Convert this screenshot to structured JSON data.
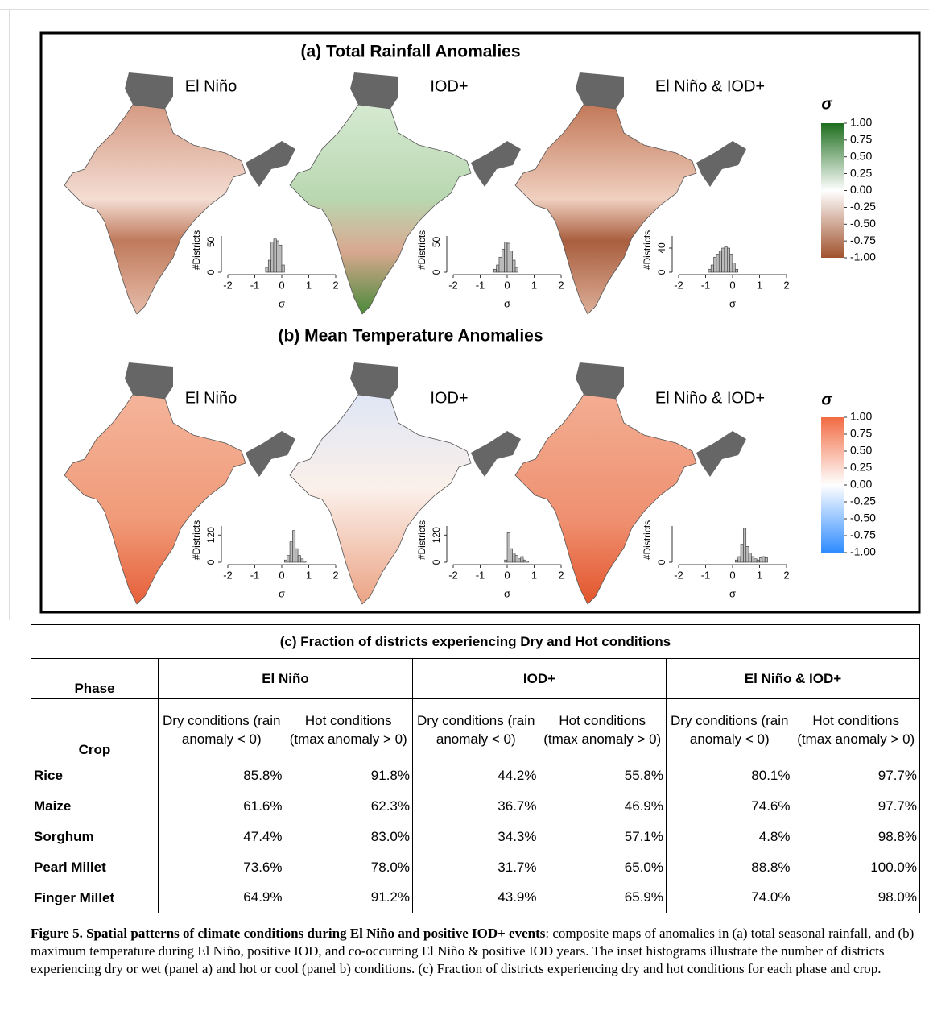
{
  "figure": {
    "panels": [
      {
        "title": "(a) Total Rainfall Anomalies",
        "colorbar": {
          "title": "σ",
          "lim": [
            -1,
            1
          ],
          "colors": [
            "#a0522d",
            "#ffffff",
            "#1e6e1e"
          ],
          "ticks": [
            {
              "value": 1,
              "label": "1.00"
            },
            {
              "value": 0.75,
              "label": "0.75"
            },
            {
              "value": 0.5,
              "label": "0.50"
            },
            {
              "value": 0.25,
              "label": "0.25"
            },
            {
              "value": 0,
              "label": "0.00"
            },
            {
              "value": -0.25,
              "label": "-0.25"
            },
            {
              "value": -0.5,
              "label": "-0.50"
            },
            {
              "value": -0.75,
              "label": "-0.75"
            },
            {
              "value": -1,
              "label": "-1.00"
            }
          ]
        },
        "hist_axis": {
          "ylabel": "#Districts",
          "xlabel": "σ",
          "xlim": [
            -2,
            2
          ],
          "xticks": [
            -2,
            -1,
            0,
            1,
            2
          ],
          "ylim": [
            0,
            60
          ]
        },
        "maps": [
          {
            "label": "El Niño",
            "hist": {
              "yticks": [
                0,
                50
              ],
              "bins": [
                -0.6,
                -0.5,
                -0.4,
                -0.3,
                -0.2,
                -0.1,
                0,
                0.1
              ],
              "counts": [
                8,
                20,
                50,
                55,
                52,
                45,
                12
              ]
            }
          },
          {
            "label": "IOD+",
            "hist": {
              "yticks": [
                0,
                50
              ],
              "bins": [
                -0.5,
                -0.4,
                -0.3,
                -0.2,
                -0.1,
                0,
                0.1,
                0.2,
                0.3,
                0.4
              ],
              "counts": [
                5,
                12,
                25,
                38,
                50,
                48,
                35,
                20,
                8
              ]
            }
          },
          {
            "label": "El Niño & IOD+",
            "hist": {
              "yticks": [
                0,
                40
              ],
              "bins": [
                -0.9,
                -0.8,
                -0.7,
                -0.6,
                -0.5,
                -0.4,
                -0.3,
                -0.2,
                -0.1,
                0,
                0.1,
                0.2
              ],
              "counts": [
                5,
                12,
                25,
                30,
                35,
                40,
                42,
                40,
                30,
                15,
                5
              ]
            }
          }
        ]
      },
      {
        "title": "(b) Mean Temperature Anomalies",
        "colorbar": {
          "title": "σ",
          "lim": [
            -1,
            1
          ],
          "colors": [
            "#2e8bff",
            "#ffffff",
            "#f26b43"
          ],
          "ticks": [
            {
              "value": 1,
              "label": "1.00"
            },
            {
              "value": 0.75,
              "label": "0.75"
            },
            {
              "value": 0.5,
              "label": "0.50"
            },
            {
              "value": 0.25,
              "label": "0.25"
            },
            {
              "value": 0,
              "label": "0.00"
            },
            {
              "value": -0.25,
              "label": "-0.25"
            },
            {
              "value": -0.5,
              "label": "-0.50"
            },
            {
              "value": -0.75,
              "label": "-0.75"
            },
            {
              "value": -1,
              "label": "-1.00"
            }
          ]
        },
        "hist_axis": {
          "ylabel": "#Districts",
          "xlabel": "σ",
          "xlim": [
            -2,
            2
          ],
          "xticks": [
            -2,
            -1,
            0,
            1,
            2
          ],
          "ylim": [
            0,
            160
          ]
        },
        "maps": [
          {
            "label": "El Niño",
            "hist": {
              "yticks": [
                0,
                120
              ],
              "bins": [
                0.1,
                0.2,
                0.3,
                0.4,
                0.5,
                0.6,
                0.7,
                0.8,
                0.9
              ],
              "counts": [
                10,
                30,
                90,
                140,
                60,
                30,
                15,
                5
              ]
            }
          },
          {
            "label": "IOD+",
            "hist": {
              "yticks": [
                0,
                120
              ],
              "bins": [
                -0.1,
                0,
                0.1,
                0.2,
                0.3,
                0.4,
                0.5,
                0.6,
                0.7,
                0.8
              ],
              "counts": [
                10,
                130,
                60,
                40,
                30,
                15,
                25,
                10,
                5
              ]
            }
          },
          {
            "label": "El Niño & IOD+",
            "hist": {
              "yticks": [
                0
              ],
              "bins": [
                0.1,
                0.2,
                0.3,
                0.4,
                0.5,
                0.6,
                0.7,
                0.8,
                0.9,
                1.0,
                1.1,
                1.2,
                1.3
              ],
              "counts": [
                10,
                25,
                80,
                150,
                70,
                40,
                25,
                15,
                10,
                20,
                25,
                20
              ]
            }
          }
        ]
      }
    ]
  },
  "table": {
    "title": "(c) Fraction of districts experiencing Dry and Hot conditions",
    "corner_top": "Phase",
    "corner_bottom": "Crop",
    "phases": [
      "El Niño",
      "IOD+",
      "El Niño & IOD+"
    ],
    "subheaders": [
      "Dry conditions (rain anomaly < 0)",
      "Hot conditions (tmax anomaly > 0)"
    ],
    "rows": [
      [
        "Rice",
        "85.8%",
        "91.8%",
        "44.2%",
        "55.8%",
        "80.1%",
        "97.7%"
      ],
      [
        "Maize",
        "61.6%",
        "62.3%",
        "36.7%",
        "46.9%",
        "74.6%",
        "97.7%"
      ],
      [
        "Sorghum",
        "47.4%",
        "83.0%",
        "34.3%",
        "57.1%",
        "4.8%",
        "98.8%"
      ],
      [
        "Pearl Millet",
        "73.6%",
        "78.0%",
        "31.7%",
        "65.0%",
        "88.8%",
        "100.0%"
      ],
      [
        "Finger Millet",
        "64.9%",
        "91.2%",
        "43.9%",
        "65.9%",
        "74.0%",
        "98.0%"
      ]
    ]
  },
  "caption": {
    "bold": "Figure 5. Spatial patterns of climate conditions during El Niño and positive IOD+ events",
    "text": ": composite maps of anomalies in (a) total seasonal rainfall, and (b) maximum temperature during El Niño, positive IOD, and co-occurring El Niño & positive IOD years. The inset histograms illustrate the number of districts experiencing dry or wet (panel a) and hot or cool (panel b) conditions. (c) Fraction of districts experiencing dry and hot conditions for each phase and crop."
  }
}
